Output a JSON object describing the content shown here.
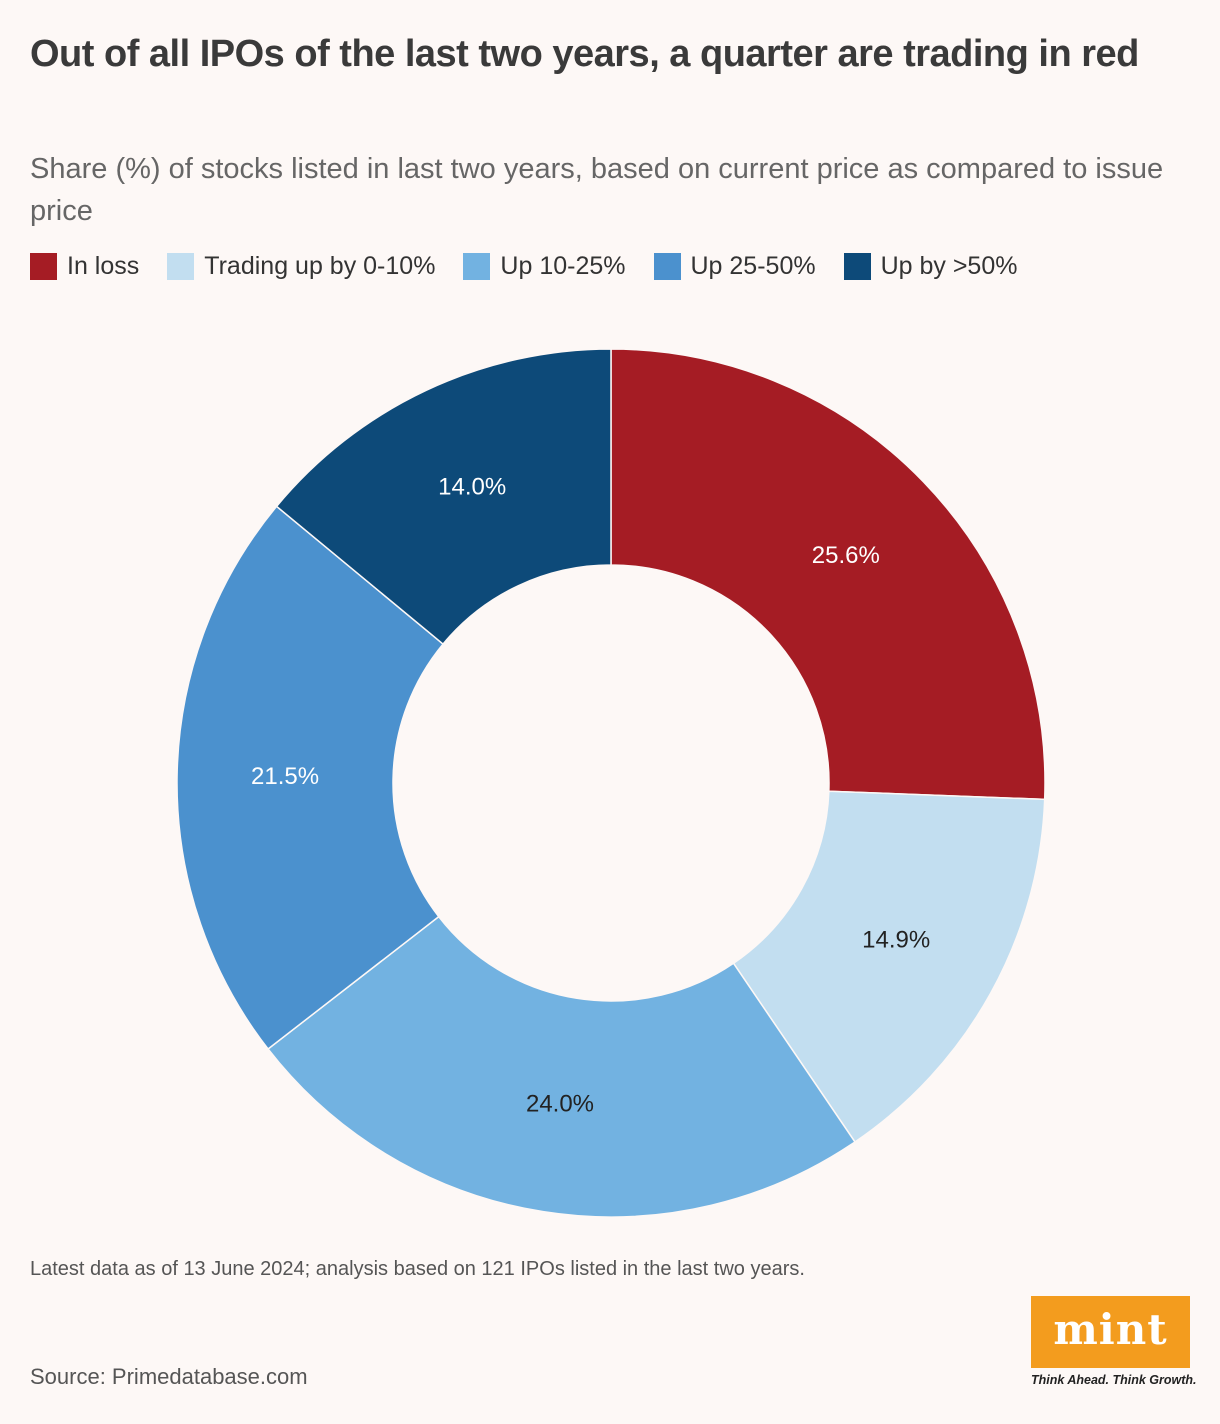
{
  "title": "Out of all IPOs of the last two years, a quarter are trading in red",
  "subtitle": "Share (%) of stocks listed in last two years, based on current price as compared to issue price",
  "legend": [
    {
      "label": "In loss",
      "color": "#a51c24"
    },
    {
      "label": "Trading up by 0-10%",
      "color": "#c2def0"
    },
    {
      "label": "Up 10-25%",
      "color": "#72b2e1"
    },
    {
      "label": "Up 25-50%",
      "color": "#4b91ce"
    },
    {
      "label": "Up by >50%",
      "color": "#0d4a79"
    }
  ],
  "chart_data": {
    "type": "pie",
    "donut": true,
    "title": "Out of all IPOs of the last two years, a quarter are trading in red",
    "subtitle": "Share (%) of stocks listed in last two years, based on current price as compared to issue price",
    "slices": [
      {
        "name": "In loss",
        "value": 25.6,
        "label": "25.6%",
        "color": "#a51c24",
        "label_color": "#ffffff"
      },
      {
        "name": "Trading up by 0-10%",
        "value": 14.9,
        "label": "14.9%",
        "color": "#c2def0",
        "label_color": "#222222"
      },
      {
        "name": "Up 10-25%",
        "value": 24.0,
        "label": "24.0%",
        "color": "#72b2e1",
        "label_color": "#222222"
      },
      {
        "name": "Up 25-50%",
        "value": 21.5,
        "label": "21.5%",
        "color": "#4b91ce",
        "label_color": "#ffffff"
      },
      {
        "name": "Up by >50%",
        "value": 14.0,
        "label": "14.0%",
        "color": "#0d4a79",
        "label_color": "#ffffff"
      }
    ],
    "legend_position": "top-left"
  },
  "footnote": "Latest data as of 13 June 2024; analysis based on 121 IPOs listed in the last two years.",
  "source": "Source: Primedatabase.com",
  "logo": {
    "text": "mint",
    "tagline": "Think Ahead. Think Growth.",
    "color": "#f39c1e"
  }
}
